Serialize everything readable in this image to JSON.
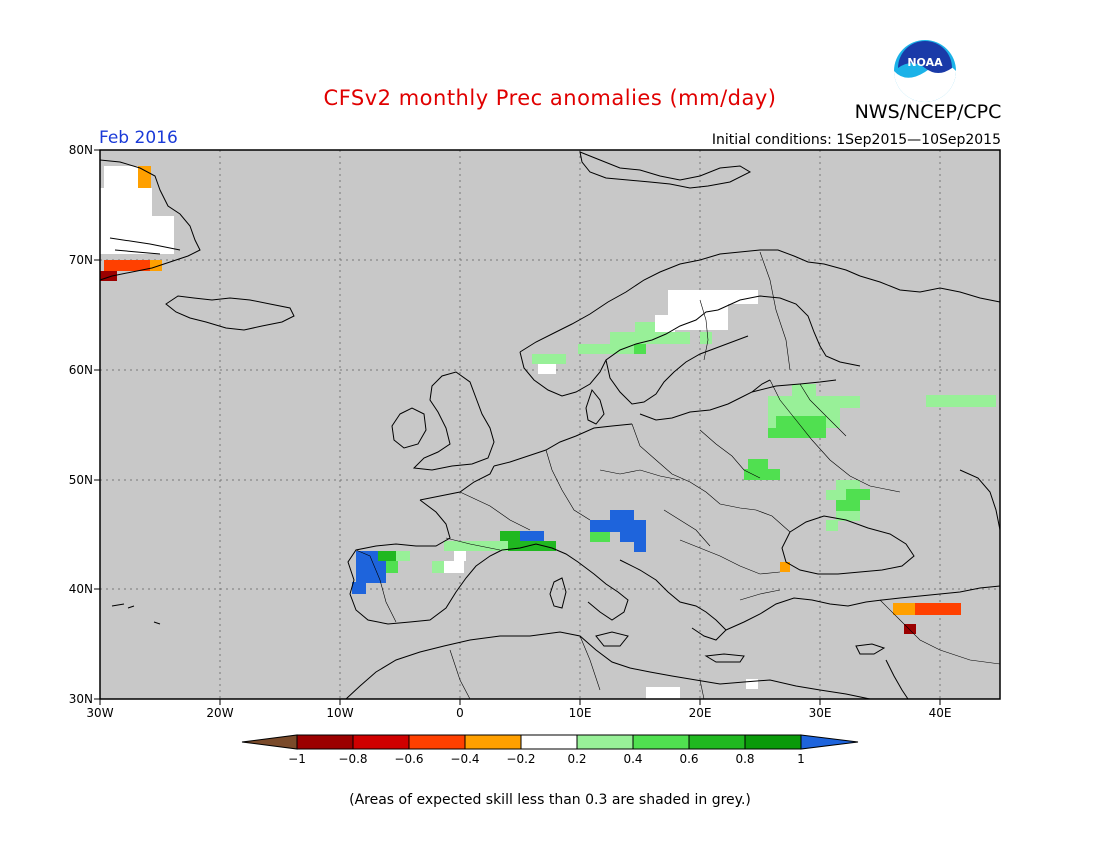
{
  "header": {
    "title": "CFSv2 monthly Prec anomalies (mm/day)",
    "org": "NWS/NCEP/CPC",
    "logo_text": "NOAA",
    "period": "Feb 2016",
    "initial_conditions": "Initial conditions: 1Sep2015—10Sep2015"
  },
  "map": {
    "region": "Europe",
    "lon_range": [
      -30,
      45
    ],
    "lat_range": [
      30,
      80
    ],
    "grid": true,
    "background_color": "#c8c8c8",
    "lat_ticks": [
      "80N",
      "70N",
      "60N",
      "50N",
      "40N",
      "30N"
    ],
    "lon_ticks": [
      "30W",
      "20W",
      "10W",
      "0",
      "10E",
      "20E",
      "30E",
      "40E"
    ]
  },
  "colorbar": {
    "labels": [
      "−1",
      "−0.8",
      "−0.6",
      "−0.4",
      "−0.2",
      "0.2",
      "0.4",
      "0.6",
      "0.8",
      "1"
    ],
    "colors": [
      "#7a4a2a",
      "#9b0000",
      "#d00000",
      "#ff4000",
      "#ffa000",
      "#ffffff",
      "#98f098",
      "#50e050",
      "#20b820",
      "#0a9a0a",
      "#1e64dc"
    ]
  },
  "note": "(Areas of expected skill less than 0.3 are shaded in grey.)"
}
